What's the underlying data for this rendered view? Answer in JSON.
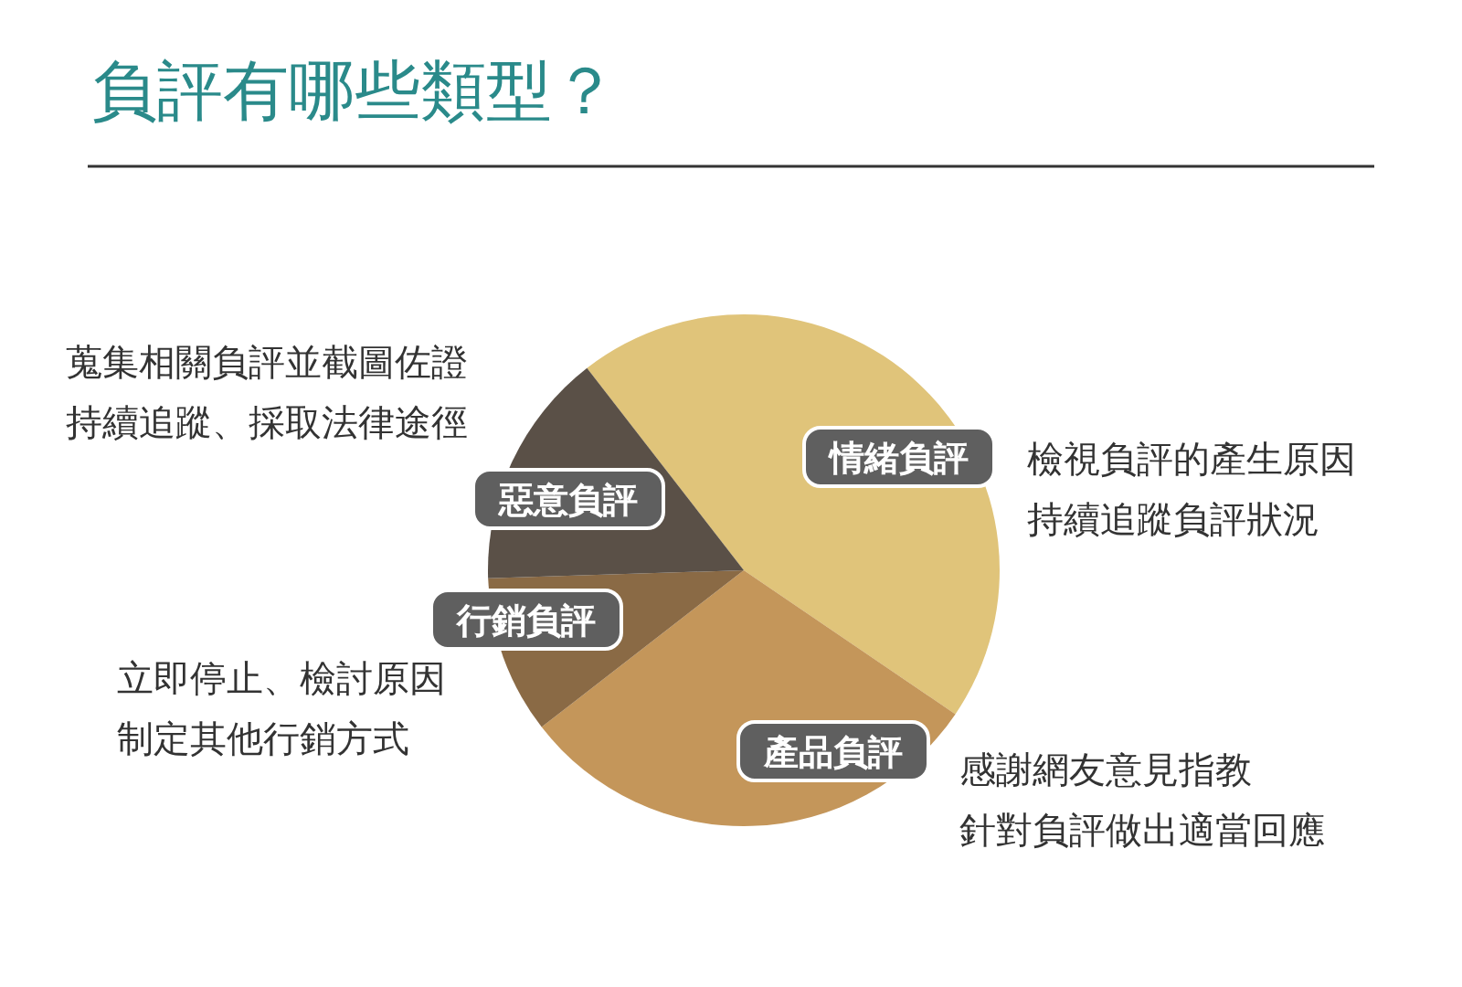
{
  "chart_data": {
    "type": "pie",
    "title": "負評有哪些類型？",
    "categories": [
      "情緒負評",
      "產品負評",
      "行銷負評",
      "惡意負評"
    ],
    "values": [
      45,
      30,
      10,
      15
    ],
    "colors": [
      "#e0c47a",
      "#c4965a",
      "#8a6a45",
      "#5a5047"
    ],
    "annotations": [
      "檢視負評的產生原因",
      "持續追蹤負評狀況",
      "感謝網友意見指教",
      "針對負評做出適當回應",
      "立即停止、檢討原因",
      "制定其他行銷方式",
      "蒐集相關負評並截圖佐證",
      "持續追蹤、採取法律途徑"
    ],
    "legend": false
  }
}
